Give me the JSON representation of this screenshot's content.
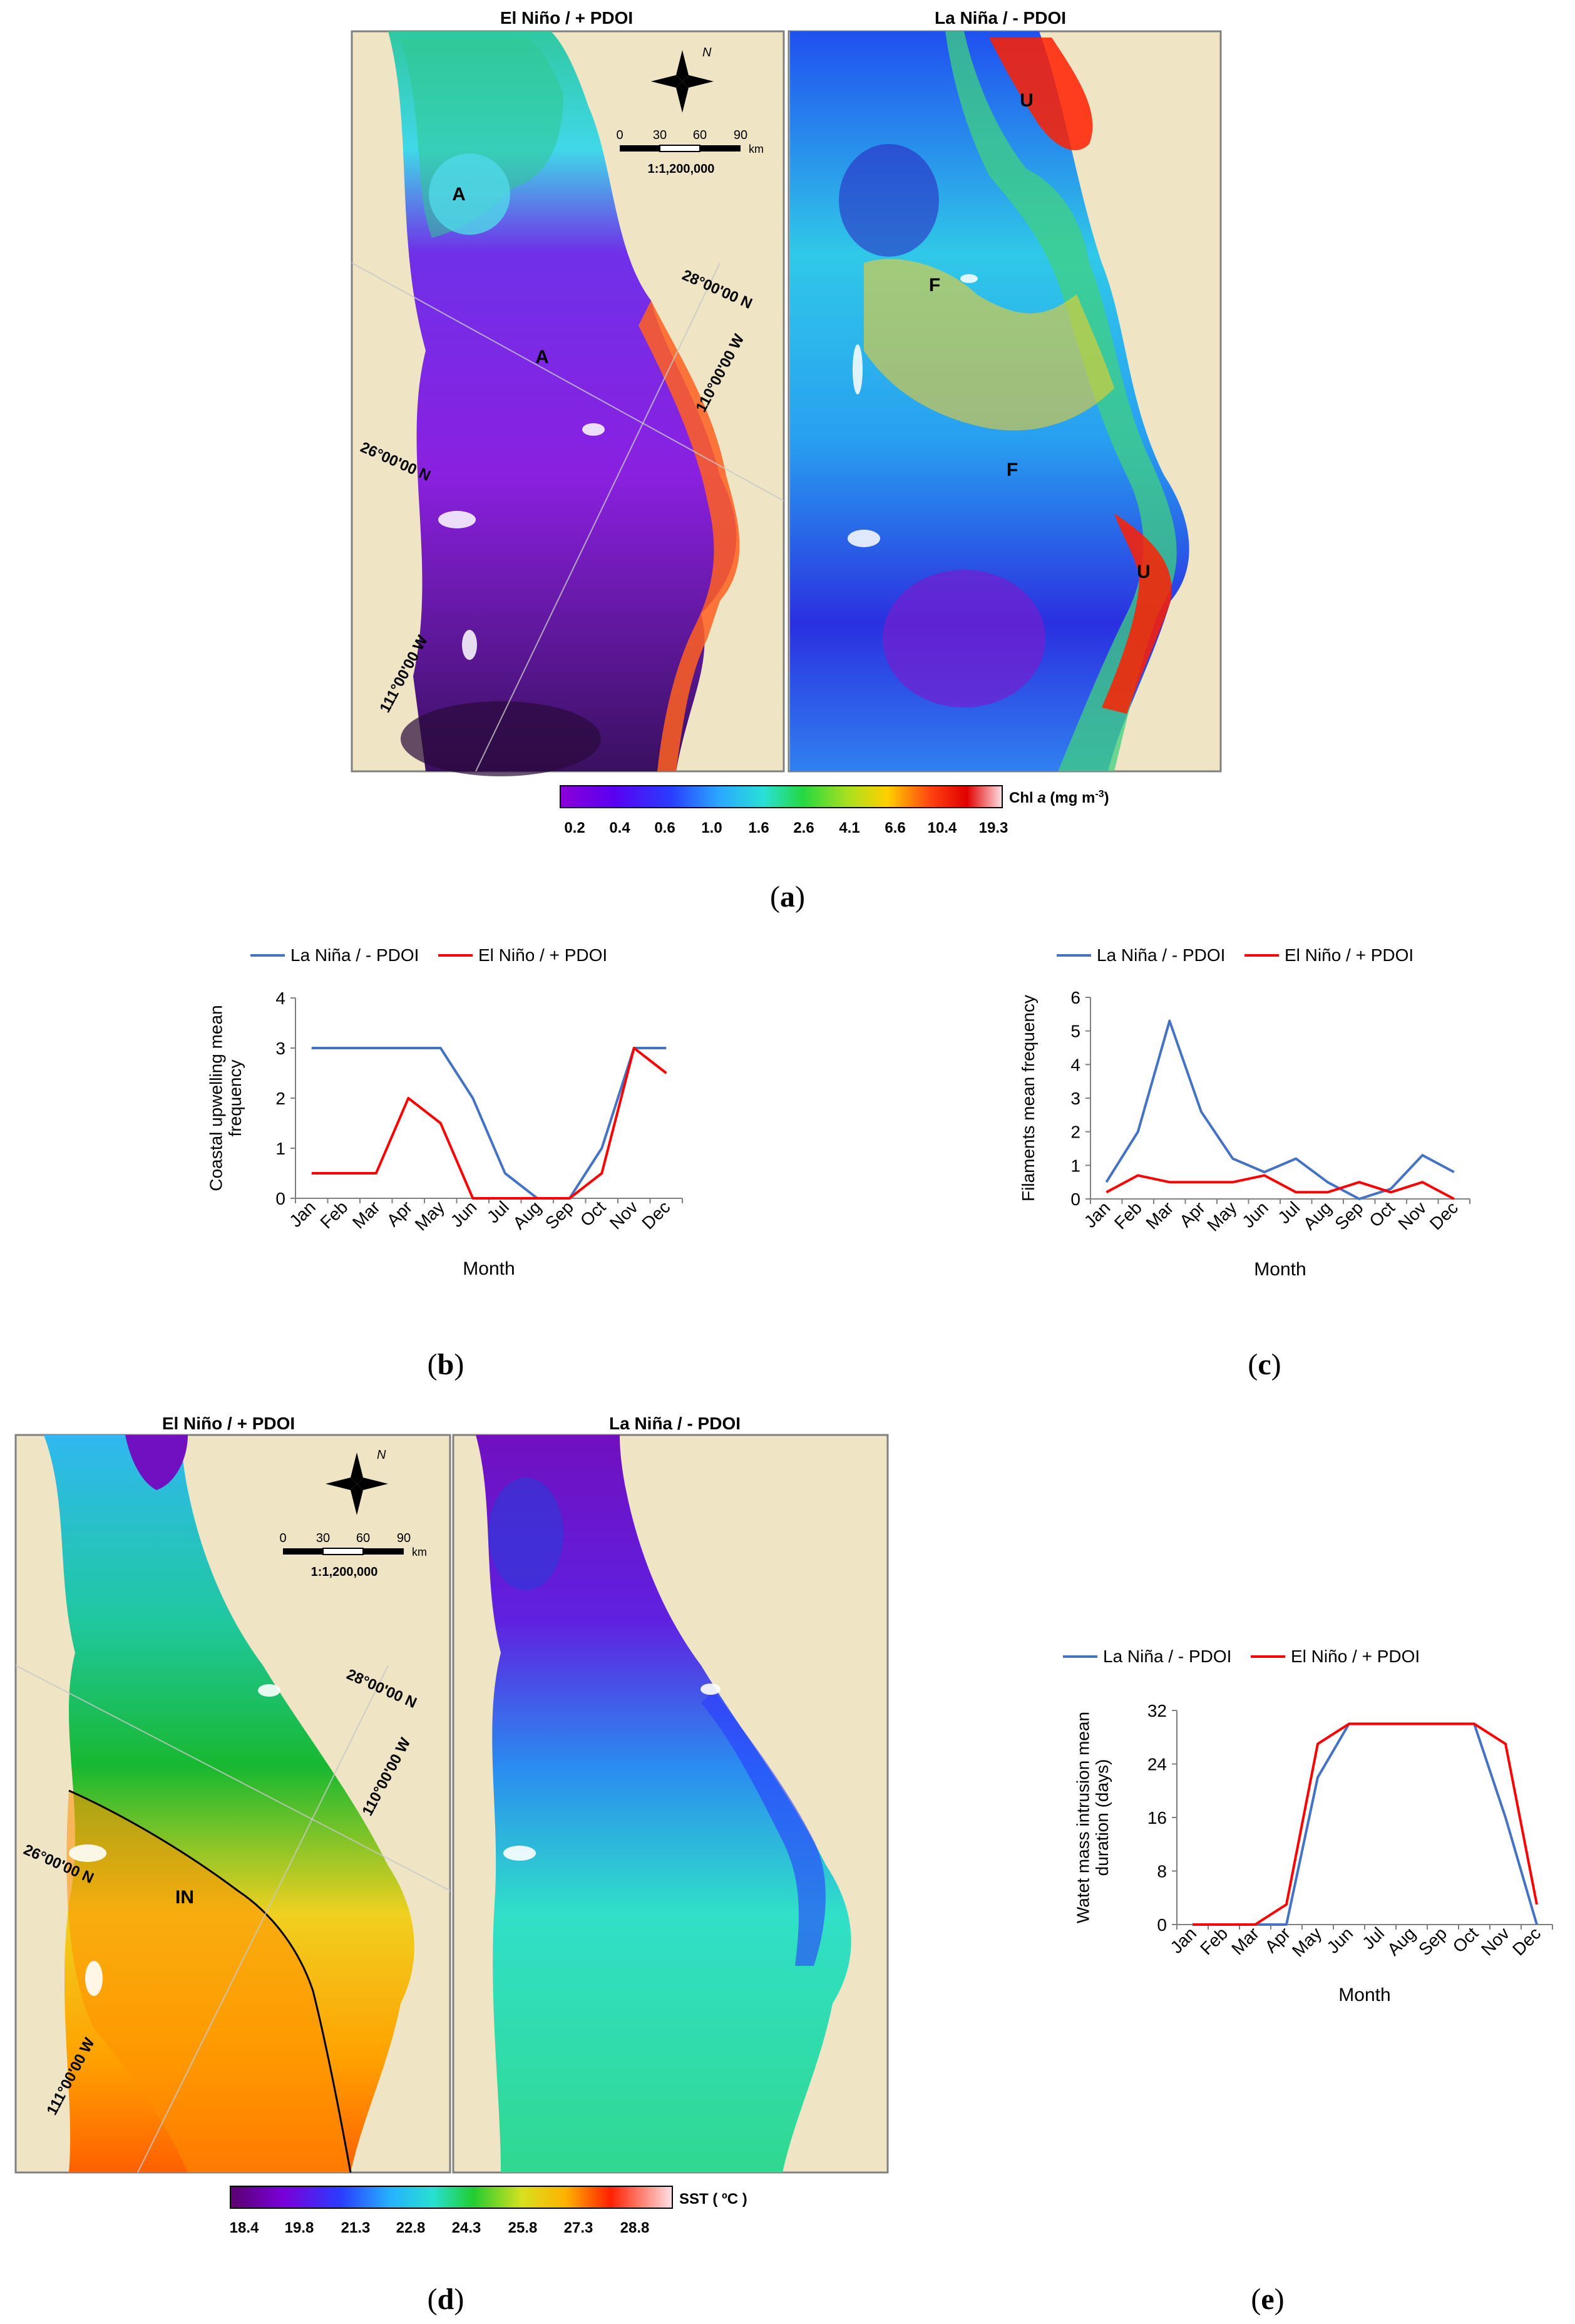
{
  "panel_a": {
    "left_title": "El Niño / + PDOI",
    "right_title": "La Niña / - PDOI",
    "scale_ticks": [
      "0",
      "30",
      "60",
      "90"
    ],
    "scale_unit": "km",
    "scale_ratio": "1:1,200,000",
    "north": "N",
    "lat_label_1": "28°00'00 N",
    "lat_label_2": "26°00'00 N",
    "lon_label_1": "110°00'00 W",
    "lon_label_2": "111°00'00 W",
    "marks_left": [
      "A",
      "A"
    ],
    "marks_right": [
      "U",
      "F",
      "F",
      "U"
    ],
    "colorbar_ticks": [
      "0.2",
      "0.4",
      "0.6",
      "1.0",
      "1.6",
      "2.6",
      "4.1",
      "6.6",
      "10.4",
      "19.3"
    ],
    "colorbar_label_pre": "Chl ",
    "colorbar_label_var": "a",
    "colorbar_label_unit": " (mg m",
    "colorbar_label_exp": "-3",
    "colorbar_label_close": ")"
  },
  "panel_d": {
    "left_title": "El Niño / + PDOI",
    "right_title": "La Niña / - PDOI",
    "scale_ticks": [
      "0",
      "30",
      "60",
      "90"
    ],
    "scale_unit": "km",
    "scale_ratio": "1:1,200,000",
    "north": "N",
    "lat_label_1": "28°00'00 N",
    "lat_label_2": "26°00'00 N",
    "lon_label_1": "110°00'00 W",
    "lon_label_2": "111°00'00 W",
    "mark_in": "IN",
    "colorbar_ticks": [
      "18.4",
      "19.8",
      "21.3",
      "22.8",
      "24.3",
      "25.8",
      "27.3",
      "28.8"
    ],
    "colorbar_label": "SST ( ºC )"
  },
  "captions": {
    "a": "a",
    "b": "b",
    "c": "c",
    "d": "d",
    "e": "e"
  },
  "colors": {
    "la_nina": "#4472C4",
    "el_nino": "#FF0000",
    "land": "#EFE4C4",
    "frame": "#808080"
  },
  "chart_data": [
    {
      "id": "b",
      "type": "line",
      "categories": [
        "Jan",
        "Feb",
        "Mar",
        "Apr",
        "May",
        "Jun",
        "Jul",
        "Aug",
        "Sep",
        "Oct",
        "Nov",
        "Dec"
      ],
      "series": [
        {
          "name": "La Niña / - PDOI",
          "values": [
            3,
            3,
            3,
            3,
            3,
            2,
            0.5,
            0,
            0,
            1,
            3,
            3
          ]
        },
        {
          "name": "El Niño / + PDOI",
          "values": [
            0.5,
            0.5,
            0.5,
            2,
            1.5,
            0,
            0,
            0,
            0,
            0.5,
            3,
            2.5
          ]
        }
      ],
      "title": "",
      "xlabel": "Month",
      "ylabel": "Coastal upwelling mean frequency",
      "ylim": [
        0,
        4
      ],
      "yticks": [
        0,
        1,
        2,
        3,
        4
      ],
      "legend": "top"
    },
    {
      "id": "c",
      "type": "line",
      "categories": [
        "Jan",
        "Feb",
        "Mar",
        "Apr",
        "May",
        "Jun",
        "Jul",
        "Aug",
        "Sep",
        "Oct",
        "Nov",
        "Dec"
      ],
      "series": [
        {
          "name": "La Niña / - PDOI",
          "values": [
            0.5,
            2,
            5.3,
            2.6,
            1.2,
            0.8,
            1.2,
            0.5,
            0,
            0.3,
            1.3,
            0.8
          ]
        },
        {
          "name": "El Niño / + PDOI",
          "values": [
            0.2,
            0.7,
            0.5,
            0.5,
            0.5,
            0.7,
            0.2,
            0.2,
            0.5,
            0.2,
            0.5,
            0
          ]
        }
      ],
      "title": "",
      "xlabel": "Month",
      "ylabel": "Filaments mean frequency",
      "ylim": [
        0,
        6
      ],
      "yticks": [
        0,
        1,
        2,
        3,
        4,
        5,
        6
      ],
      "legend": "top"
    },
    {
      "id": "e",
      "type": "line",
      "categories": [
        "Jan",
        "Feb",
        "Mar",
        "Apr",
        "May",
        "Jun",
        "Jul",
        "Aug",
        "Sep",
        "Oct",
        "Nov",
        "Dec"
      ],
      "series": [
        {
          "name": "La Niña / - PDOI",
          "values": [
            0,
            0,
            0,
            0,
            22,
            30,
            30,
            30,
            30,
            30,
            16,
            0
          ]
        },
        {
          "name": "El Niño / + PDOI",
          "values": [
            0,
            0,
            0,
            3,
            27,
            30,
            30,
            30,
            30,
            30,
            27,
            3
          ]
        }
      ],
      "title": "",
      "xlabel": "Month",
      "ylabel": "Watet mass intrusion mean duration (days)",
      "ylim": [
        0,
        32
      ],
      "yticks": [
        0,
        8,
        16,
        24,
        32
      ],
      "legend": "top"
    }
  ]
}
